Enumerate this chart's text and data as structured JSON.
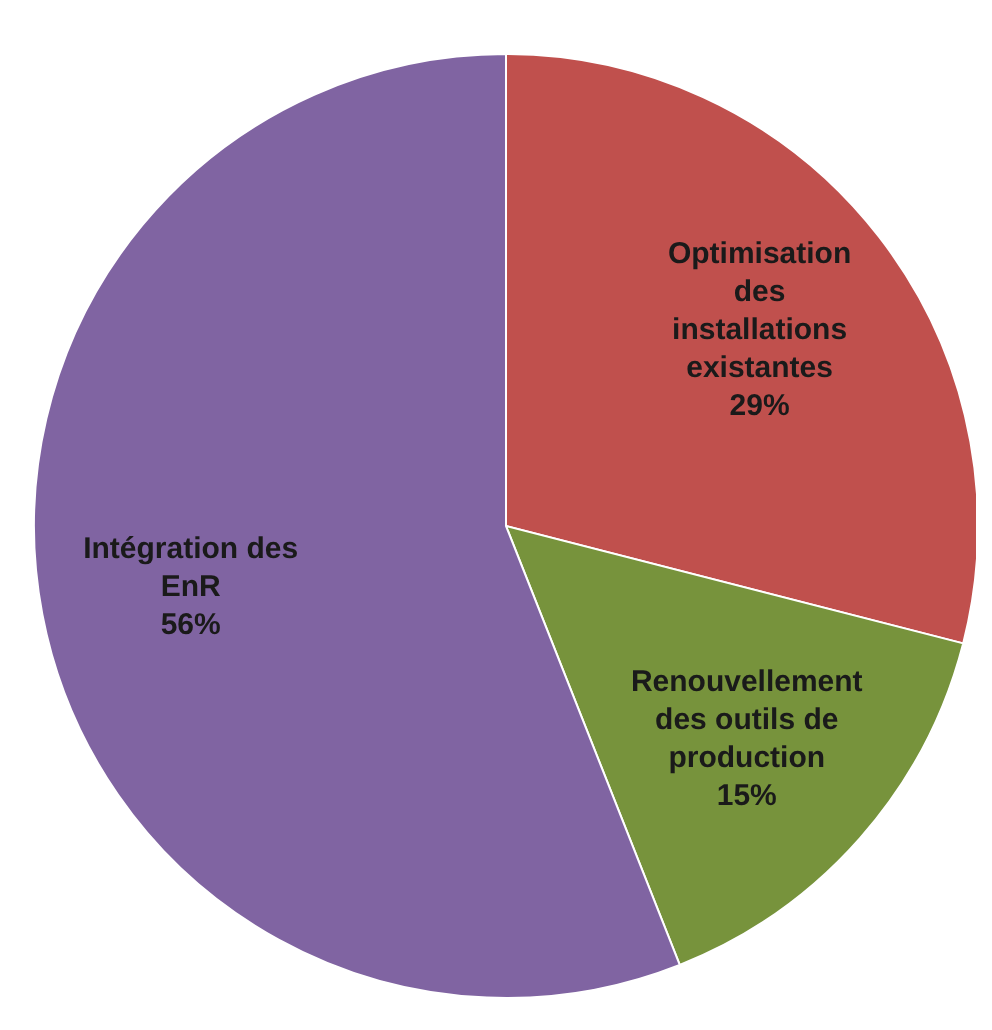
{
  "chart_data": {
    "type": "pie",
    "categories": [
      "Optimisation des installations existantes",
      "Renouvellement des outils de production",
      "Intégration des EnR"
    ],
    "values": [
      29,
      15,
      56
    ],
    "colors": [
      "#c0504d",
      "#77933c",
      "#8064a2"
    ],
    "value_labels": [
      "29%",
      "15%",
      "56%"
    ]
  }
}
